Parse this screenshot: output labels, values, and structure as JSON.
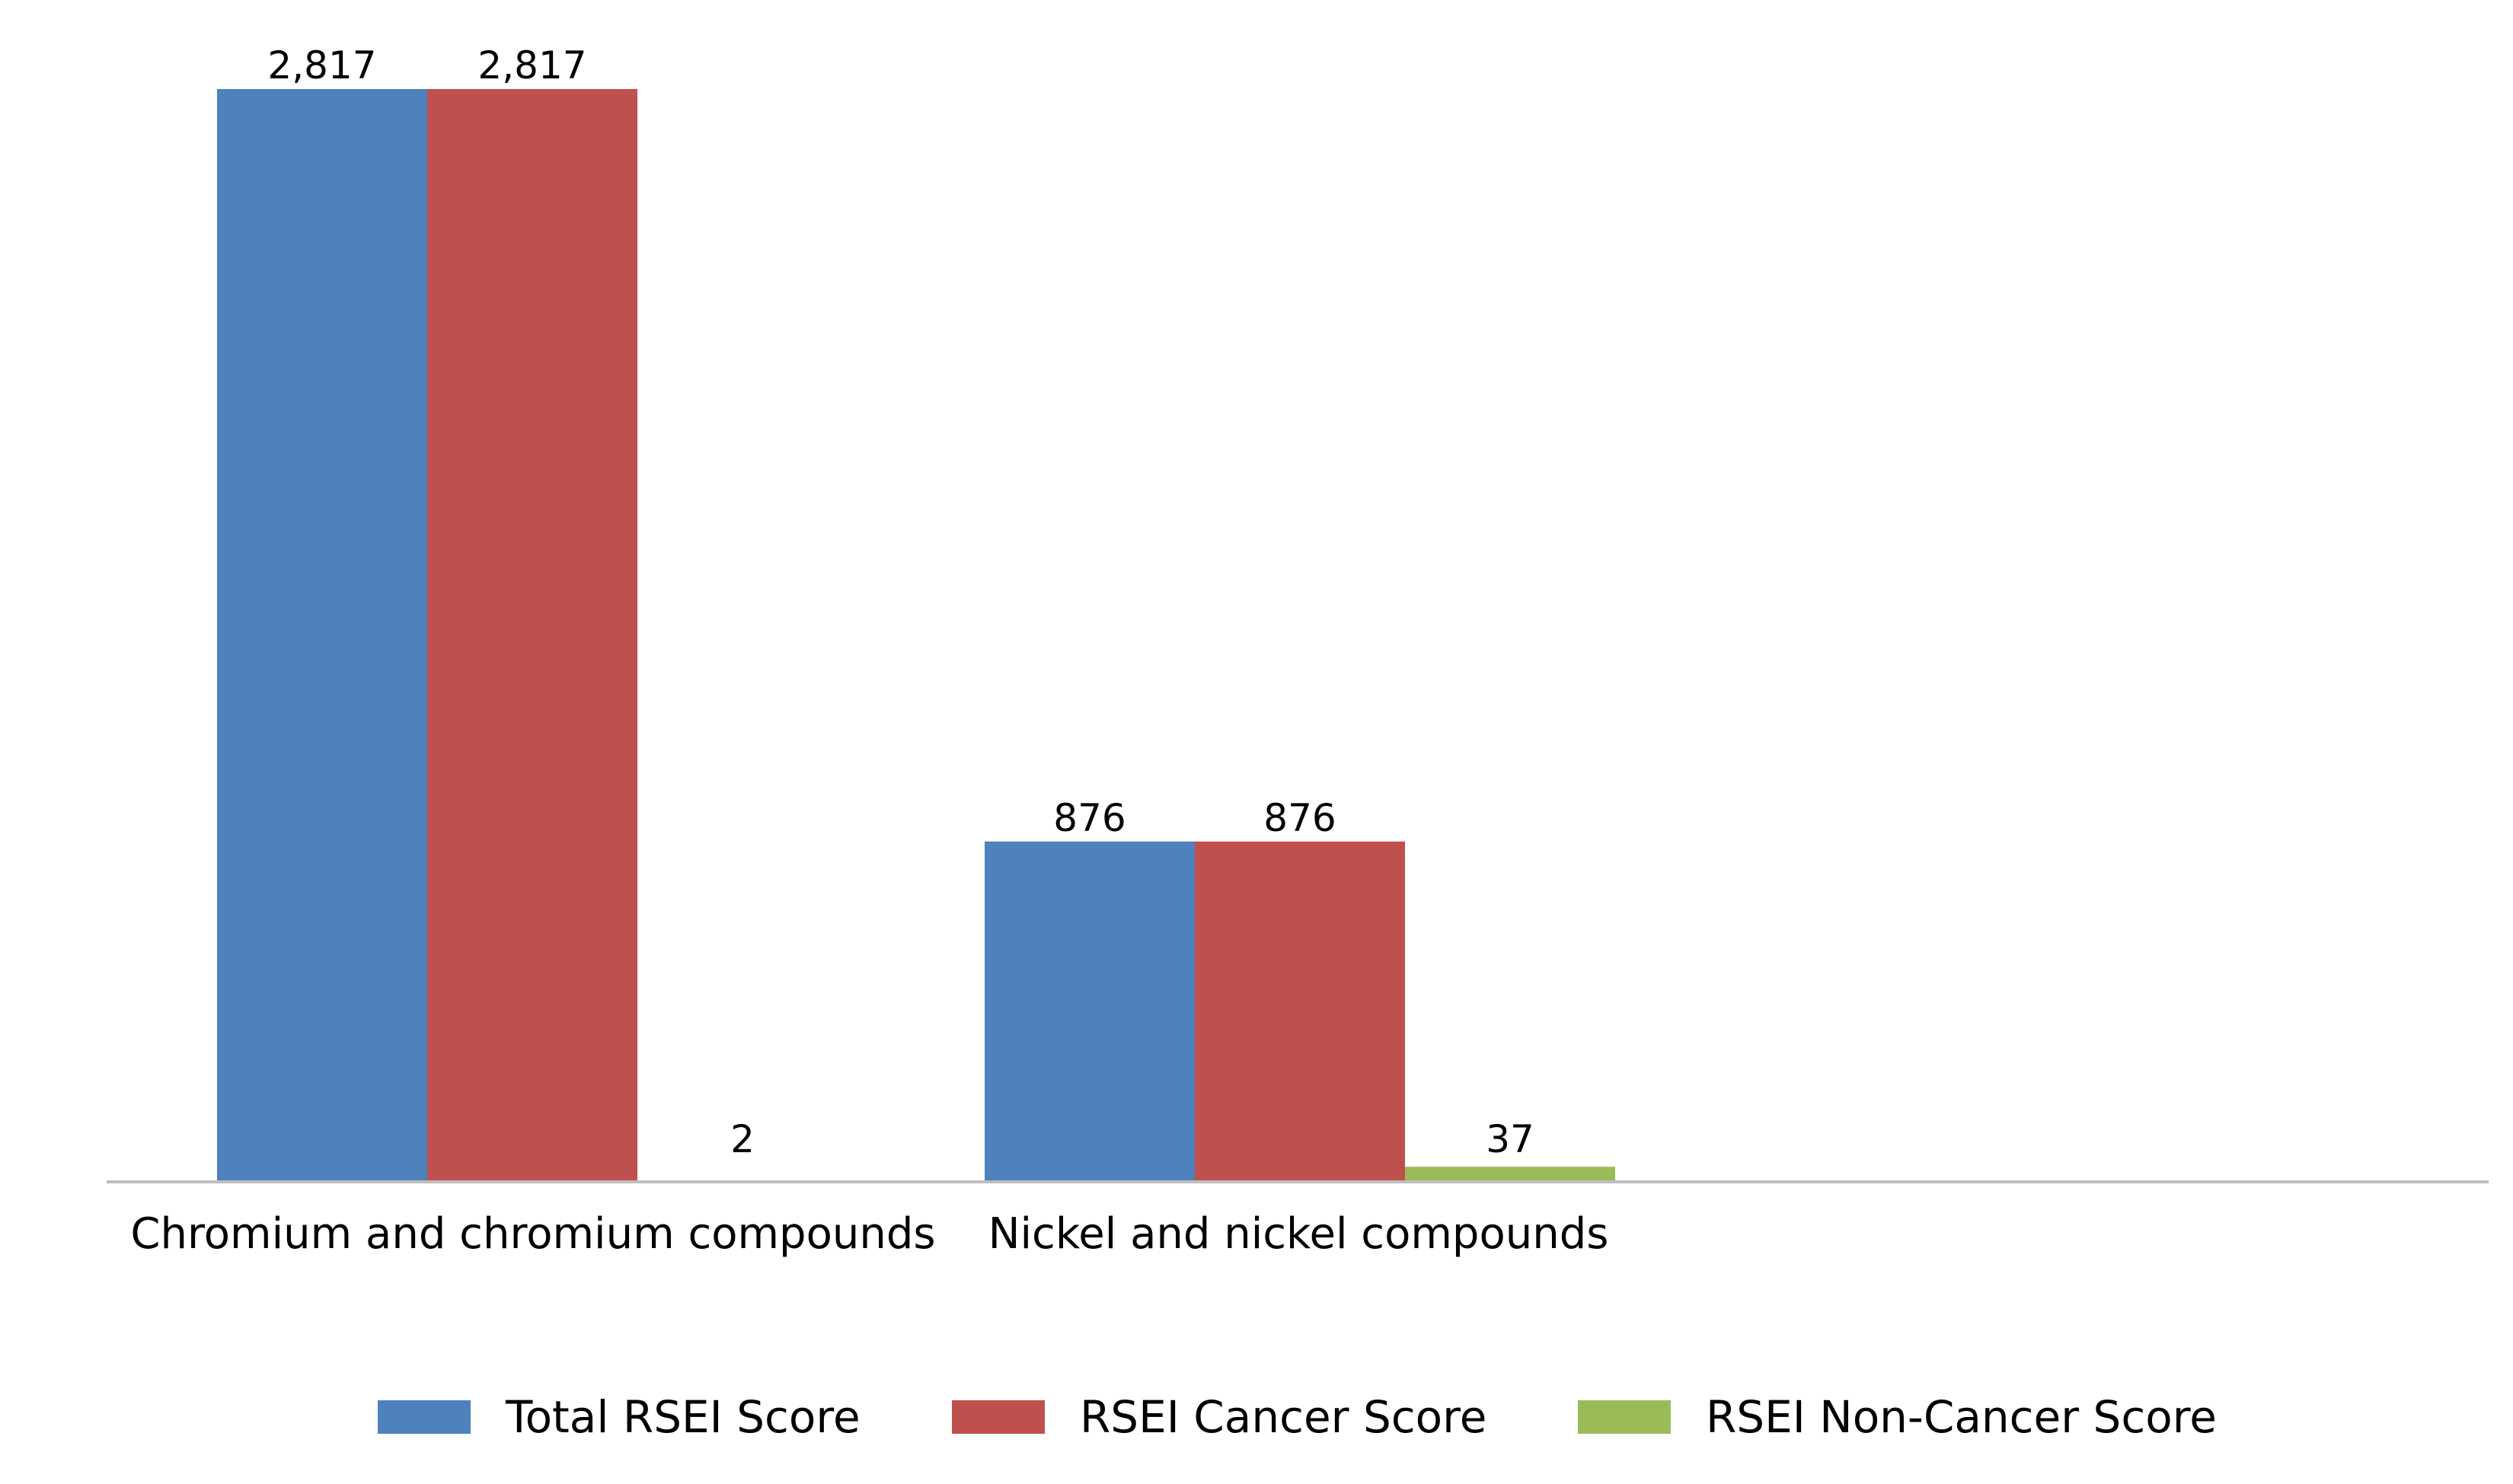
{
  "chart_data": {
    "type": "bar",
    "title": "",
    "xlabel": "",
    "ylabel": "",
    "categories": [
      "Chromium and chromium compounds",
      "Nickel and nickel compounds"
    ],
    "series": [
      {
        "name": "Total RSEI Score",
        "color": "#4f81bd",
        "values": [
          2817,
          876
        ],
        "labels": [
          "2,817",
          "876"
        ]
      },
      {
        "name": "RSEI Cancer Score",
        "color": "#c0504d",
        "values": [
          2817,
          876
        ],
        "labels": [
          "2,817",
          "876"
        ]
      },
      {
        "name": "RSEI Non-Cancer Score",
        "color": "#9bbb59",
        "values": [
          2,
          37
        ],
        "labels": [
          "2",
          "37"
        ]
      }
    ],
    "ylim": [
      0,
      2817
    ],
    "grid": false,
    "y_axis_visible": false,
    "legend_position": "bottom",
    "axis_color": "#bfbfbf"
  }
}
